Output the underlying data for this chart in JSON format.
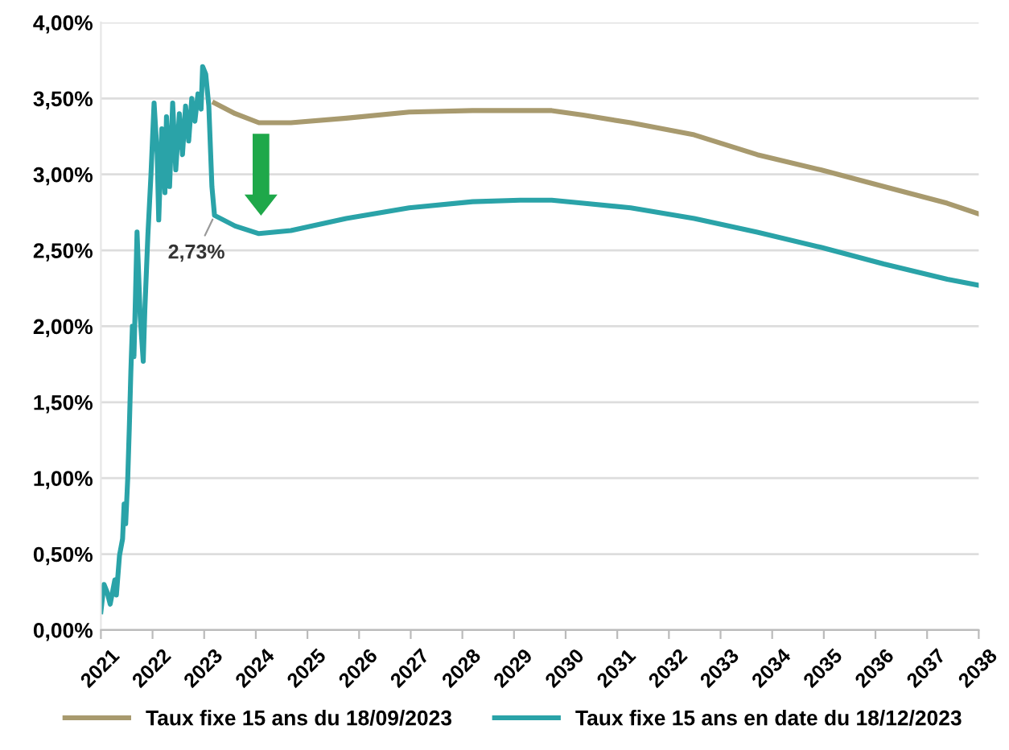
{
  "chart_data": {
    "type": "line",
    "series": [
      {
        "name": "Taux fixe 15 ans du 18/09/2023",
        "color": "#a89a6e",
        "x": [
          2023.2,
          2023.6,
          2024.06,
          2024.68,
          2025.75,
          2026.97,
          2028.2,
          2029.12,
          2029.73,
          2030.34,
          2031.26,
          2032.49,
          2033.71,
          2034.94,
          2036.16,
          2037.39,
          2038.0
        ],
        "values": [
          3.47,
          3.4,
          3.34,
          3.34,
          3.37,
          3.41,
          3.42,
          3.42,
          3.42,
          3.39,
          3.34,
          3.26,
          3.13,
          3.03,
          2.92,
          2.81,
          2.74
        ]
      },
      {
        "name": "Taux fixe 15 ans en date du 18/12/2023",
        "color": "#2aa3a8",
        "x": [
          2021.0,
          2021.06,
          2021.12,
          2021.18,
          2021.27,
          2021.3,
          2021.36,
          2021.42,
          2021.45,
          2021.48,
          2021.52,
          2021.55,
          2021.58,
          2021.61,
          2021.64,
          2021.67,
          2021.7,
          2021.73,
          2021.76,
          2021.82,
          2021.85,
          2021.91,
          2021.97,
          2022.03,
          2022.09,
          2022.12,
          2022.18,
          2022.24,
          2022.27,
          2022.33,
          2022.39,
          2022.45,
          2022.52,
          2022.58,
          2022.64,
          2022.7,
          2022.76,
          2022.82,
          2022.88,
          2022.94,
          2022.97,
          2023.03,
          2023.09,
          2023.15,
          2023.2,
          2023.6,
          2024.06,
          2024.68,
          2025.75,
          2026.97,
          2028.2,
          2029.12,
          2029.73,
          2030.34,
          2031.26,
          2032.49,
          2033.71,
          2034.94,
          2036.16,
          2037.39,
          2038.0
        ],
        "values": [
          0.12,
          0.3,
          0.25,
          0.17,
          0.33,
          0.23,
          0.49,
          0.6,
          0.83,
          0.7,
          1.0,
          1.33,
          1.7,
          2.0,
          1.8,
          2.2,
          2.62,
          2.35,
          2.07,
          1.77,
          2.1,
          2.6,
          3.0,
          3.47,
          3.13,
          2.7,
          3.3,
          2.88,
          3.38,
          2.92,
          3.47,
          3.03,
          3.4,
          3.13,
          3.45,
          3.22,
          3.5,
          3.35,
          3.53,
          3.43,
          3.71,
          3.66,
          3.45,
          2.92,
          2.73,
          2.66,
          2.61,
          2.63,
          2.71,
          2.78,
          2.82,
          2.83,
          2.83,
          2.81,
          2.78,
          2.71,
          2.62,
          2.52,
          2.41,
          2.31,
          2.27
        ]
      }
    ],
    "annotations": [
      {
        "text": "2,73%",
        "x": 2023.2,
        "y": 2.73
      }
    ],
    "xlim": [
      2021,
      2038
    ],
    "xticks": [
      2021,
      2022,
      2023,
      2024,
      2025,
      2026,
      2027,
      2028,
      2029,
      2030,
      2031,
      2032,
      2033,
      2034,
      2035,
      2036,
      2037,
      2038
    ],
    "ylim": [
      0,
      4
    ],
    "yticks": [
      {
        "value": 0,
        "label": "0,00%"
      },
      {
        "value": 0.5,
        "label": "0,50%"
      },
      {
        "value": 1,
        "label": "1,00%"
      },
      {
        "value": 1.5,
        "label": "1,50%"
      },
      {
        "value": 2,
        "label": "2,00%"
      },
      {
        "value": 2.5,
        "label": "2,50%"
      },
      {
        "value": 3,
        "label": "3,00%"
      },
      {
        "value": 3.5,
        "label": "3,50%"
      },
      {
        "value": 4,
        "label": "4,00%"
      }
    ],
    "grid": "y",
    "legend": "bottom",
    "marker": "none",
    "line_style": "solid"
  }
}
